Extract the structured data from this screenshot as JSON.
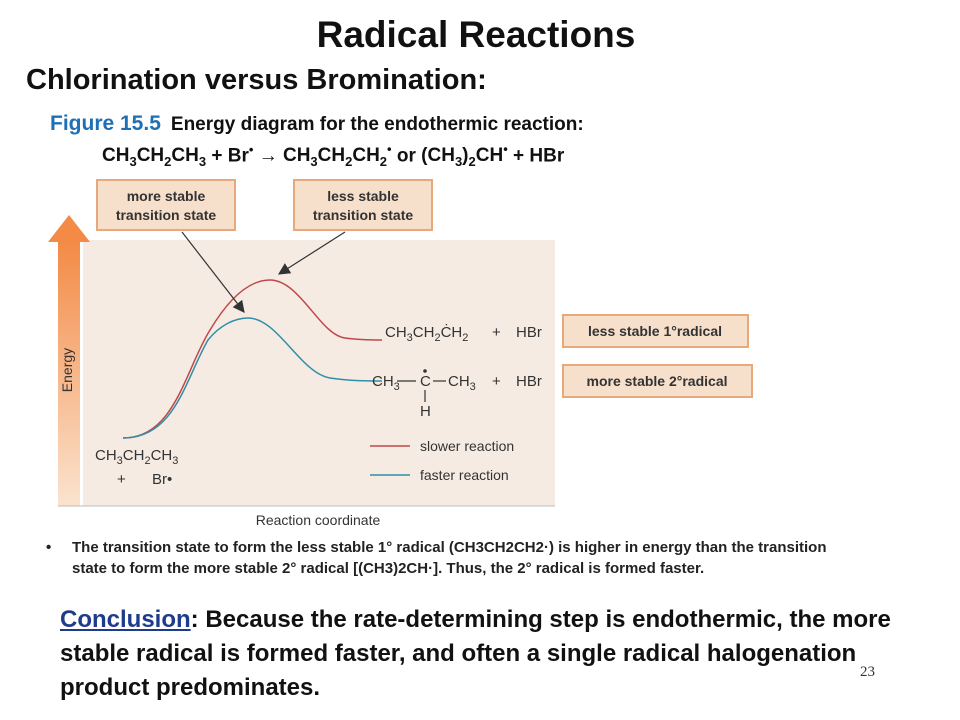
{
  "title": "Radical Reactions",
  "subtitle": "Chlorination versus Bromination:",
  "figure": {
    "number": "Figure 15.5",
    "caption": "Energy diagram for the endothermic reaction:",
    "equation": {
      "reactant": "CH3CH2CH3",
      "radical": "Br",
      "arrow": "→",
      "product_1": "CH3CH2CH2",
      "or": "or",
      "product_2": "(CH3)2CH",
      "byproduct": "HBr"
    },
    "labels": {
      "more_stable_ts": [
        "more stable",
        "transition state"
      ],
      "less_stable_ts": [
        "less stable",
        "transition state"
      ],
      "less_stable_radical": "less stable 1°radical",
      "more_stable_radical": "more stable 2°radical",
      "energy_axis": "Energy",
      "reaction_axis": "Reaction coordinate"
    },
    "species": {
      "product_primary": "CH3CH2ĊH2",
      "product_secondary_left": "CH3",
      "product_secondary_center": "C",
      "product_secondary_right": "CH3",
      "product_secondary_h": "H",
      "plus": "+",
      "hbr": "HBr",
      "reactant_line1": "CH3CH2CH3",
      "reactant_line2": "Br"
    },
    "legend": [
      {
        "label": "slower reaction",
        "color": "#c0474a"
      },
      {
        "label": "faster reaction",
        "color": "#2f8fa8"
      }
    ],
    "colors": {
      "panel": "#f5ebe2",
      "label_box": "#f6dfcb",
      "label_border": "#e7a97c",
      "arrow": "#f0823c"
    }
  },
  "bullet": "The transition state to form the less stable 1° radical (CH3CH2CH2·) is higher in energy than the transition state to form the more stable 2° radical [(CH3)2CH·]. Thus, the 2° radical is formed faster.",
  "conclusion": {
    "label": "Conclusion",
    "text": ": Because the rate-determining step is endothermic, the more stable radical is formed faster, and often a single radical halogenation product predominates."
  },
  "page_number": "23"
}
